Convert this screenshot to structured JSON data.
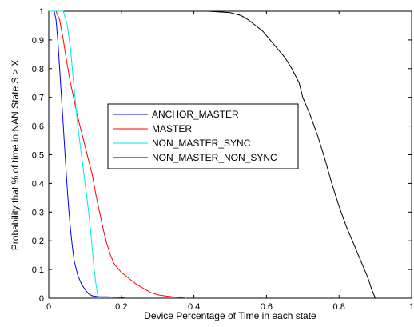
{
  "chart_data": {
    "type": "line",
    "title": "",
    "xlabel": "Device Percentage of Time in each state",
    "ylabel": "Probability that % of time in NAN State S > X",
    "xlim": [
      0,
      1
    ],
    "ylim": [
      0,
      1
    ],
    "xticks": [
      "0",
      "0.2",
      "0.4",
      "0.6",
      "0.8",
      "1"
    ],
    "yticks": [
      "0",
      "0.1",
      "0.2",
      "0.3",
      "0.4",
      "0.5",
      "0.6",
      "0.7",
      "0.8",
      "0.9",
      "1"
    ],
    "grid": false,
    "legend_position": "center-left",
    "series": [
      {
        "name": "ANCHOR_MASTER",
        "color": "#0000ff",
        "x": [
          0.0,
          0.015,
          0.02,
          0.025,
          0.03,
          0.035,
          0.04,
          0.045,
          0.05,
          0.055,
          0.06,
          0.065,
          0.07,
          0.08,
          0.09,
          0.1,
          0.11,
          0.12,
          0.14,
          0.16,
          0.18,
          0.2,
          0.21
        ],
        "y": [
          1.0,
          1.0,
          0.97,
          0.9,
          0.8,
          0.7,
          0.6,
          0.5,
          0.4,
          0.31,
          0.24,
          0.18,
          0.13,
          0.08,
          0.05,
          0.03,
          0.015,
          0.008,
          0.005,
          0.005,
          0.004,
          0.003,
          0.0
        ]
      },
      {
        "name": "MASTER",
        "color": "#ff0000",
        "x": [
          0.0,
          0.02,
          0.03,
          0.04,
          0.05,
          0.06,
          0.07,
          0.08,
          0.09,
          0.1,
          0.11,
          0.12,
          0.13,
          0.14,
          0.15,
          0.16,
          0.17,
          0.18,
          0.2,
          0.22,
          0.24,
          0.26,
          0.28,
          0.3,
          0.32,
          0.34,
          0.36,
          0.38
        ],
        "y": [
          1.0,
          1.0,
          0.97,
          0.9,
          0.82,
          0.75,
          0.69,
          0.63,
          0.58,
          0.53,
          0.48,
          0.43,
          0.36,
          0.3,
          0.24,
          0.19,
          0.15,
          0.12,
          0.09,
          0.07,
          0.05,
          0.035,
          0.02,
          0.012,
          0.008,
          0.005,
          0.003,
          0.0
        ]
      },
      {
        "name": "NON_MASTER_SYNC",
        "color": "#00e5e5",
        "x": [
          0.0,
          0.04,
          0.045,
          0.05,
          0.06,
          0.07,
          0.08,
          0.09,
          0.1,
          0.11,
          0.115,
          0.12,
          0.125,
          0.13,
          0.135,
          0.14
        ],
        "y": [
          1.0,
          1.0,
          0.98,
          0.96,
          0.87,
          0.73,
          0.6,
          0.5,
          0.4,
          0.3,
          0.24,
          0.17,
          0.1,
          0.05,
          0.01,
          0.0
        ]
      },
      {
        "name": "NON_MASTER_NON_SYNC",
        "color": "#000000",
        "x": [
          0.44,
          0.5,
          0.53,
          0.55,
          0.57,
          0.59,
          0.61,
          0.63,
          0.65,
          0.67,
          0.69,
          0.7,
          0.72,
          0.74,
          0.76,
          0.78,
          0.8,
          0.82,
          0.84,
          0.86,
          0.88,
          0.89,
          0.9
        ],
        "y": [
          1.0,
          0.995,
          0.985,
          0.97,
          0.95,
          0.93,
          0.9,
          0.87,
          0.84,
          0.8,
          0.75,
          0.7,
          0.64,
          0.57,
          0.49,
          0.4,
          0.32,
          0.25,
          0.19,
          0.13,
          0.07,
          0.03,
          0.0
        ]
      }
    ]
  }
}
